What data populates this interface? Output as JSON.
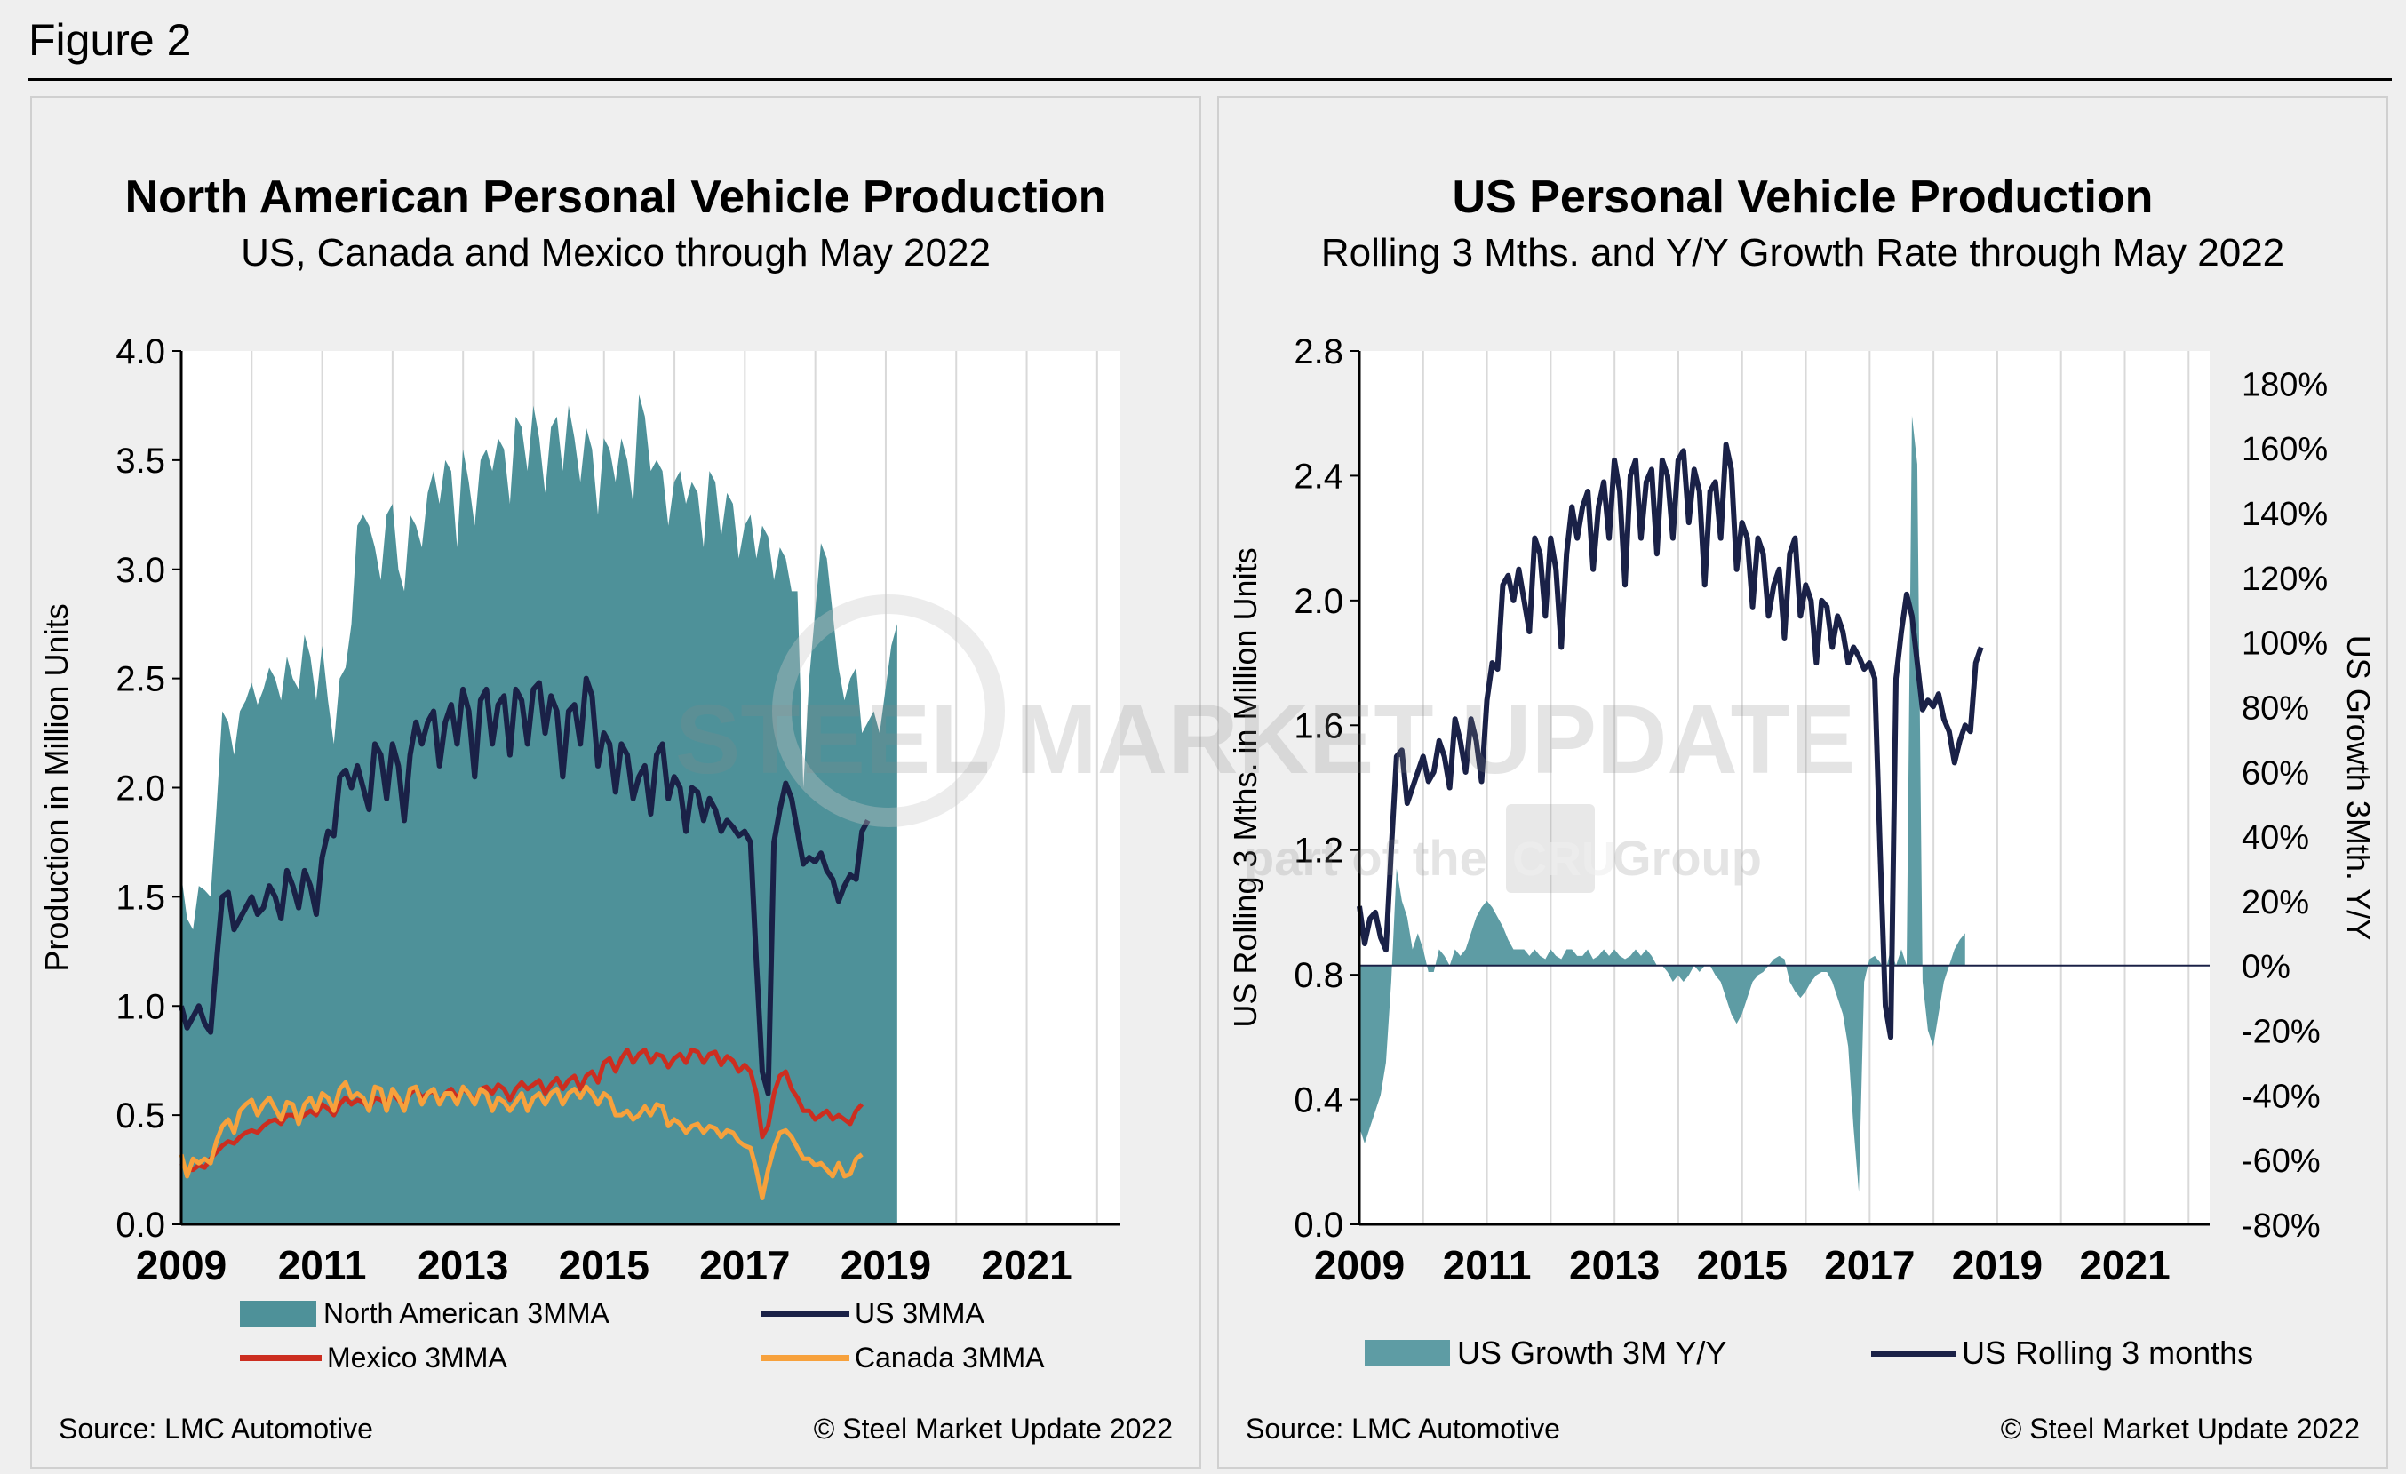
{
  "figure_label": "Figure 2",
  "left_panel": {
    "title": "North American Personal Vehicle Production",
    "subtitle": "US, Canada and Mexico through May 2022",
    "source": "Source: LMC Automotive",
    "copyright": "© Steel Market Update 2022"
  },
  "right_panel": {
    "title": "US Personal Vehicle Production",
    "subtitle": "Rolling 3 Mths. and Y/Y Growth Rate through May 2022",
    "source": "Source: LMC Automotive",
    "copyright": "© Steel Market Update 2022"
  },
  "watermark": {
    "brand": "STEEL MARKET UPDATE",
    "tagline_pre": "part of the",
    "tagline_logo": "CRU",
    "tagline_post": "Group"
  },
  "colors": {
    "na_fill": "#4e9199",
    "us_line": "#1a2147",
    "mexico_line": "#cc2e20",
    "canada_line": "#f7a13c",
    "growth_fill": "#5e9ca4"
  },
  "chart_data": [
    {
      "type": "area",
      "ylabel": "Production in Million Units",
      "ylim": [
        0,
        4.0
      ],
      "yticks": [
        "0.0",
        "0.5",
        "1.0",
        "1.5",
        "2.0",
        "2.5",
        "3.0",
        "3.5",
        "4.0"
      ],
      "xticks": [
        "2009",
        "2011",
        "2013",
        "2015",
        "2017",
        "2019",
        "2021"
      ],
      "grid": true,
      "legend_position": "bottom",
      "x_range": [
        2009.0,
        2022.33
      ],
      "series": [
        {
          "name": "North American 3MMA",
          "type": "area",
          "x_start": 2009.0,
          "step": 0.0833,
          "values": [
            1.6,
            1.4,
            1.35,
            1.55,
            1.53,
            1.5,
            1.9,
            2.35,
            2.3,
            2.15,
            2.35,
            2.4,
            2.48,
            2.38,
            2.45,
            2.55,
            2.5,
            2.4,
            2.6,
            2.5,
            2.45,
            2.7,
            2.6,
            2.4,
            2.65,
            2.4,
            2.2,
            2.5,
            2.55,
            2.75,
            3.2,
            3.25,
            3.2,
            3.1,
            2.95,
            3.25,
            3.3,
            3.0,
            2.9,
            3.25,
            3.2,
            3.1,
            3.35,
            3.45,
            3.3,
            3.5,
            3.45,
            3.1,
            3.55,
            3.4,
            3.2,
            3.5,
            3.55,
            3.45,
            3.6,
            3.55,
            3.3,
            3.7,
            3.65,
            3.45,
            3.75,
            3.6,
            3.35,
            3.65,
            3.7,
            3.45,
            3.75,
            3.6,
            3.4,
            3.65,
            3.55,
            3.25,
            3.6,
            3.55,
            3.4,
            3.6,
            3.5,
            3.3,
            3.8,
            3.7,
            3.45,
            3.5,
            3.45,
            3.2,
            3.4,
            3.45,
            3.3,
            3.4,
            3.35,
            3.1,
            3.45,
            3.4,
            3.15,
            3.35,
            3.3,
            3.05,
            3.2,
            3.25,
            3.05,
            3.2,
            3.15,
            2.95,
            3.1,
            3.05,
            2.9,
            2.9,
            2.0,
            2.5,
            2.8,
            3.12,
            3.05,
            2.8,
            2.55,
            2.4,
            2.5,
            2.55,
            2.25,
            2.3,
            2.35,
            2.25,
            2.45,
            2.65,
            2.75
          ]
        },
        {
          "name": "US 3MMA",
          "type": "line",
          "x_start": 2009.0,
          "step": 0.0833,
          "values": [
            1.0,
            0.9,
            0.95,
            1.0,
            0.92,
            0.88,
            1.2,
            1.5,
            1.52,
            1.35,
            1.4,
            1.45,
            1.5,
            1.42,
            1.45,
            1.55,
            1.5,
            1.4,
            1.62,
            1.55,
            1.45,
            1.62,
            1.55,
            1.42,
            1.68,
            1.8,
            1.78,
            2.05,
            2.08,
            2.0,
            2.1,
            2.0,
            1.9,
            2.2,
            2.15,
            1.95,
            2.2,
            2.1,
            1.85,
            2.15,
            2.3,
            2.2,
            2.3,
            2.35,
            2.1,
            2.3,
            2.38,
            2.2,
            2.45,
            2.35,
            2.05,
            2.4,
            2.45,
            2.2,
            2.38,
            2.42,
            2.15,
            2.45,
            2.4,
            2.2,
            2.45,
            2.48,
            2.25,
            2.42,
            2.35,
            2.05,
            2.35,
            2.38,
            2.2,
            2.5,
            2.42,
            2.1,
            2.25,
            2.2,
            1.98,
            2.2,
            2.15,
            1.95,
            2.05,
            2.1,
            1.88,
            2.15,
            2.2,
            1.95,
            2.05,
            2.0,
            1.8,
            2.0,
            1.98,
            1.85,
            1.95,
            1.9,
            1.8,
            1.85,
            1.82,
            1.78,
            1.8,
            1.75,
            1.2,
            0.7,
            0.6,
            1.75,
            1.9,
            2.02,
            1.95,
            1.8,
            1.65,
            1.68,
            1.66,
            1.7,
            1.62,
            1.58,
            1.48,
            1.55,
            1.6,
            1.58,
            1.8,
            1.85
          ]
        },
        {
          "name": "Mexico 3MMA",
          "type": "line",
          "x_start": 2009.0,
          "step": 0.0833,
          "values": [
            0.28,
            0.25,
            0.25,
            0.27,
            0.26,
            0.3,
            0.33,
            0.36,
            0.38,
            0.37,
            0.4,
            0.42,
            0.43,
            0.42,
            0.45,
            0.47,
            0.48,
            0.46,
            0.5,
            0.5,
            0.48,
            0.5,
            0.52,
            0.5,
            0.55,
            0.53,
            0.5,
            0.55,
            0.58,
            0.55,
            0.57,
            0.56,
            0.53,
            0.58,
            0.57,
            0.55,
            0.6,
            0.57,
            0.54,
            0.6,
            0.62,
            0.58,
            0.6,
            0.61,
            0.56,
            0.6,
            0.62,
            0.58,
            0.62,
            0.6,
            0.56,
            0.62,
            0.63,
            0.6,
            0.64,
            0.62,
            0.57,
            0.62,
            0.65,
            0.62,
            0.64,
            0.66,
            0.6,
            0.64,
            0.67,
            0.62,
            0.66,
            0.68,
            0.62,
            0.68,
            0.7,
            0.65,
            0.74,
            0.76,
            0.7,
            0.76,
            0.8,
            0.74,
            0.78,
            0.8,
            0.74,
            0.78,
            0.77,
            0.72,
            0.76,
            0.78,
            0.74,
            0.8,
            0.79,
            0.74,
            0.78,
            0.79,
            0.73,
            0.77,
            0.75,
            0.7,
            0.73,
            0.7,
            0.6,
            0.4,
            0.45,
            0.6,
            0.68,
            0.7,
            0.62,
            0.58,
            0.52,
            0.52,
            0.48,
            0.5,
            0.52,
            0.48,
            0.5,
            0.48,
            0.46,
            0.52,
            0.55
          ]
        },
        {
          "name": "Canada 3MMA",
          "type": "line",
          "x_start": 2009.0,
          "step": 0.0833,
          "values": [
            0.32,
            0.22,
            0.3,
            0.28,
            0.3,
            0.28,
            0.38,
            0.45,
            0.48,
            0.42,
            0.52,
            0.55,
            0.57,
            0.5,
            0.55,
            0.58,
            0.53,
            0.48,
            0.56,
            0.55,
            0.46,
            0.55,
            0.58,
            0.52,
            0.6,
            0.58,
            0.52,
            0.62,
            0.65,
            0.58,
            0.6,
            0.58,
            0.52,
            0.63,
            0.62,
            0.52,
            0.62,
            0.58,
            0.52,
            0.62,
            0.63,
            0.55,
            0.6,
            0.62,
            0.55,
            0.6,
            0.6,
            0.55,
            0.63,
            0.6,
            0.55,
            0.62,
            0.6,
            0.52,
            0.58,
            0.56,
            0.52,
            0.56,
            0.6,
            0.52,
            0.58,
            0.6,
            0.55,
            0.6,
            0.62,
            0.55,
            0.6,
            0.62,
            0.58,
            0.63,
            0.6,
            0.55,
            0.6,
            0.58,
            0.5,
            0.5,
            0.52,
            0.48,
            0.5,
            0.54,
            0.5,
            0.55,
            0.54,
            0.45,
            0.48,
            0.46,
            0.42,
            0.45,
            0.46,
            0.42,
            0.45,
            0.44,
            0.4,
            0.43,
            0.42,
            0.38,
            0.36,
            0.35,
            0.25,
            0.12,
            0.25,
            0.35,
            0.42,
            0.43,
            0.4,
            0.35,
            0.3,
            0.3,
            0.27,
            0.28,
            0.25,
            0.22,
            0.28,
            0.22,
            0.23,
            0.3,
            0.32
          ]
        }
      ]
    },
    {
      "type": "line",
      "ylabel": "US Rolling 3 Mths. in Million Units",
      "y2label": "US Growth 3Mth. Y/Y",
      "ylim": [
        0,
        2.8
      ],
      "y2lim": [
        -80,
        190
      ],
      "yticks": [
        "0.0",
        "0.4",
        "0.8",
        "1.2",
        "1.6",
        "2.0",
        "2.4",
        "2.8"
      ],
      "y2ticks": [
        "-80%",
        "-60%",
        "-40%",
        "-20%",
        "0%",
        "20%",
        "40%",
        "60%",
        "80%",
        "100%",
        "120%",
        "140%",
        "160%",
        "180%"
      ],
      "xticks": [
        "2009",
        "2011",
        "2013",
        "2015",
        "2017",
        "2019",
        "2021"
      ],
      "grid": true,
      "legend_position": "bottom",
      "x_range": [
        2009.0,
        2022.33
      ],
      "series": [
        {
          "name": "US Growth 3M Y/Y",
          "type": "area",
          "axis": "right",
          "x_start": 2009.0,
          "step": 0.0833,
          "values": [
            -50,
            -55,
            -50,
            -45,
            -40,
            -30,
            -5,
            30,
            20,
            15,
            5,
            10,
            5,
            -2,
            -2,
            5,
            3,
            0,
            5,
            3,
            5,
            10,
            15,
            18,
            20,
            18,
            15,
            12,
            8,
            5,
            5,
            5,
            3,
            5,
            3,
            2,
            5,
            3,
            2,
            5,
            5,
            3,
            3,
            5,
            2,
            3,
            5,
            3,
            5,
            3,
            2,
            3,
            5,
            3,
            5,
            3,
            0,
            0,
            -2,
            -5,
            -3,
            -5,
            -3,
            0,
            -2,
            0,
            0,
            -3,
            -5,
            -10,
            -15,
            -18,
            -15,
            -10,
            -5,
            -3,
            -2,
            0,
            2,
            3,
            2,
            -5,
            -8,
            -10,
            -8,
            -5,
            -3,
            -2,
            -2,
            -5,
            -10,
            -15,
            -25,
            -50,
            -70,
            -5,
            2,
            3,
            1,
            -2,
            5,
            0,
            5,
            0,
            170,
            155,
            -5,
            -20,
            -25,
            -15,
            -5,
            0,
            5,
            8,
            10
          ]
        },
        {
          "name": "US Rolling 3 months",
          "type": "line",
          "axis": "left",
          "x_start": 2009.0,
          "step": 0.0833,
          "values": [
            1.02,
            0.9,
            0.98,
            1.0,
            0.92,
            0.88,
            1.2,
            1.5,
            1.52,
            1.35,
            1.4,
            1.45,
            1.5,
            1.42,
            1.45,
            1.55,
            1.5,
            1.4,
            1.62,
            1.55,
            1.45,
            1.62,
            1.55,
            1.42,
            1.68,
            1.8,
            1.78,
            2.05,
            2.08,
            2.0,
            2.1,
            2.0,
            1.9,
            2.2,
            2.15,
            1.95,
            2.2,
            2.1,
            1.85,
            2.15,
            2.3,
            2.2,
            2.3,
            2.35,
            2.1,
            2.3,
            2.38,
            2.2,
            2.45,
            2.35,
            2.05,
            2.4,
            2.45,
            2.2,
            2.38,
            2.42,
            2.15,
            2.45,
            2.4,
            2.2,
            2.45,
            2.48,
            2.25,
            2.42,
            2.35,
            2.05,
            2.35,
            2.38,
            2.2,
            2.5,
            2.42,
            2.1,
            2.25,
            2.2,
            1.98,
            2.2,
            2.15,
            1.95,
            2.05,
            2.1,
            1.88,
            2.15,
            2.2,
            1.95,
            2.05,
            2.0,
            1.8,
            2.0,
            1.98,
            1.85,
            1.95,
            1.9,
            1.8,
            1.85,
            1.82,
            1.78,
            1.8,
            1.75,
            1.2,
            0.7,
            0.6,
            1.75,
            1.9,
            2.02,
            1.95,
            1.8,
            1.65,
            1.68,
            1.66,
            1.7,
            1.62,
            1.58,
            1.48,
            1.55,
            1.6,
            1.58,
            1.8,
            1.85
          ]
        }
      ]
    }
  ]
}
